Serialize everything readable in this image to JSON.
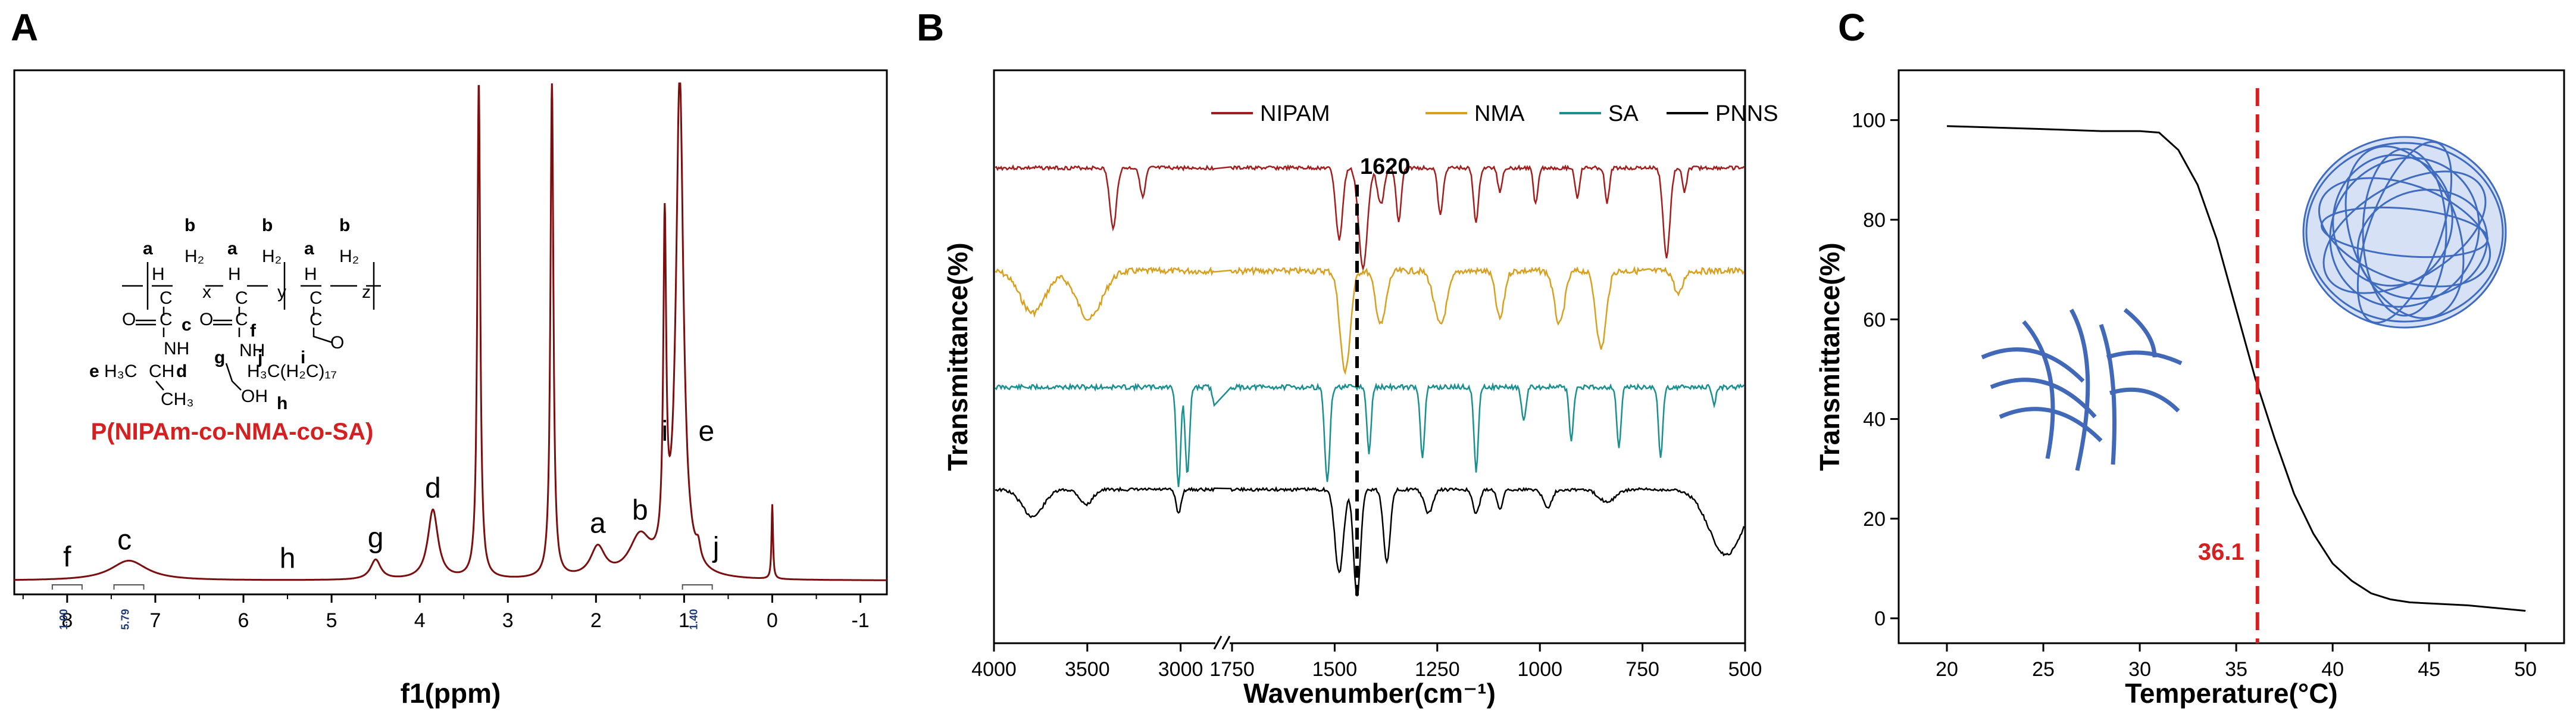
{
  "chart_data": [
    {
      "panel": "A",
      "type": "line",
      "xlabel": "f1(ppm)",
      "x_ticks": [
        "8",
        "7",
        "6",
        "5",
        "4",
        "3",
        "2",
        "1",
        "0",
        "-1"
      ],
      "xlim": [
        8.6,
        -1.3
      ],
      "color": "#7b0f0f",
      "peak_labels": [
        {
          "label": "f",
          "ppm": 8.0
        },
        {
          "label": "c",
          "ppm": 7.35
        },
        {
          "label": "h",
          "ppm": 5.5
        },
        {
          "label": "g",
          "ppm": 4.5
        },
        {
          "label": "d",
          "ppm": 3.85
        },
        {
          "label": "a",
          "ppm": 1.98
        },
        {
          "label": "b",
          "ppm": 1.5
        },
        {
          "label": "i",
          "ppm": 1.22
        },
        {
          "label": "e",
          "ppm": 0.95
        },
        {
          "label": "j",
          "ppm": 0.84
        }
      ],
      "integrals": [
        {
          "value": "1.00",
          "ppm": 8.0
        },
        {
          "value": "5.79",
          "ppm": 7.3
        },
        {
          "value": "1.40",
          "ppm": 0.85
        }
      ],
      "peaks": [
        {
          "ppm": 7.3,
          "rel_height": 0.04,
          "width": 0.25
        },
        {
          "ppm": 4.5,
          "rel_height": 0.04,
          "width": 0.07
        },
        {
          "ppm": 3.85,
          "rel_height": 0.14,
          "width": 0.07
        },
        {
          "ppm": 3.33,
          "rel_height": 1.0,
          "width": 0.02
        },
        {
          "ppm": 2.5,
          "rel_height": 1.0,
          "width": 0.02
        },
        {
          "ppm": 1.98,
          "rel_height": 0.06,
          "width": 0.1
        },
        {
          "ppm": 1.5,
          "rel_height": 0.08,
          "width": 0.15
        },
        {
          "ppm": 1.22,
          "rel_height": 0.66,
          "width": 0.02
        },
        {
          "ppm": 1.05,
          "rel_height": 1.0,
          "width": 0.05
        },
        {
          "ppm": 0.84,
          "rel_height": 0.03,
          "width": 0.03
        },
        {
          "ppm": 0.0,
          "rel_height": 0.15,
          "width": 0.01
        }
      ],
      "structure": {
        "name": "P(NIPAm-co-NMA-co-SA)",
        "texts": {
          "b1": "b",
          "b2": "b",
          "b3": "b",
          "a1": "a",
          "a2": "a",
          "a3": "a",
          "h2_1": "H₂",
          "h2_2": "H₂",
          "h2_3": "H₂",
          "h1": "H",
          "h2": "H",
          "h3": "H",
          "c1": "C",
          "c2": "C",
          "c3": "C",
          "x": "x",
          "y": "y",
          "z": "z",
          "o1": "O",
          "o2": "O",
          "o3": "O",
          "c_lbl": "c",
          "f_lbl": "f",
          "nh1": "NH",
          "nh2": "NH",
          "g_lbl": "g",
          "j_lbl": "j",
          "i_lbl": "i",
          "e_lbl": "e",
          "d_lbl": "d",
          "h_lbl": "h",
          "h3c": "H₃C",
          "ch": "CH",
          "ch3": "CH₃",
          "oh": "OH",
          "chain": "H₃C(H₂C)₁₇"
        }
      }
    },
    {
      "panel": "B",
      "type": "line",
      "xlabel": "Wavenumber(cm⁻¹)",
      "ylabel": "Transmittance(%)",
      "x_ticks_left": [
        "4000",
        "3500",
        "3000"
      ],
      "x_ticks_right": [
        "1750",
        "1500",
        "1250",
        "1000",
        "750",
        "500"
      ],
      "x_break": true,
      "annotation": {
        "text": "1620",
        "x": 1620
      },
      "series": [
        {
          "name": "NIPAM",
          "color": "#a31d1d"
        },
        {
          "name": "NMA",
          "color": "#d9a020"
        },
        {
          "name": "SA",
          "color": "#1a8f8f"
        },
        {
          "name": "PNNS",
          "color": "#000000"
        }
      ]
    },
    {
      "panel": "C",
      "type": "line",
      "xlabel": "Temperature(°C)",
      "ylabel": "Transmittance(%)",
      "xlim": [
        17.5,
        52
      ],
      "ylim": [
        -5,
        110
      ],
      "x_ticks": [
        20,
        25,
        30,
        35,
        40,
        45,
        50
      ],
      "y_ticks": [
        0,
        20,
        40,
        60,
        80,
        100
      ],
      "x": [
        20,
        25,
        28,
        30,
        31,
        32,
        33,
        34,
        35,
        35.5,
        36,
        36.5,
        37,
        38,
        39,
        40,
        41,
        42,
        43,
        44,
        45,
        47,
        50
      ],
      "y": [
        98.8,
        98.2,
        97.8,
        97.8,
        97.5,
        94,
        87,
        76,
        62,
        55,
        48,
        42,
        36,
        25,
        17,
        11,
        7.5,
        5,
        3.8,
        3.2,
        3.0,
        2.6,
        1.5
      ],
      "threshold": {
        "value": 36.1,
        "label": "36.1",
        "color": "#d42020"
      }
    }
  ]
}
